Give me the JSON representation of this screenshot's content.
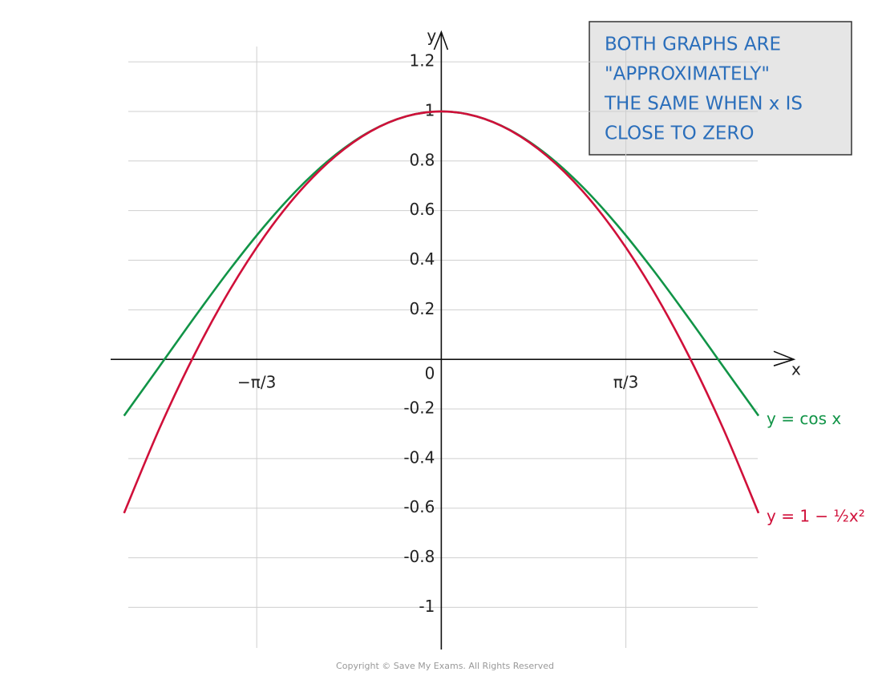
{
  "chart_data": {
    "type": "line",
    "annotation": [
      "BOTH GRAPHS ARE",
      "\"APPROXIMATELY\"",
      "THE SAME WHEN x IS",
      "CLOSE TO ZERO"
    ],
    "xlabel": "x",
    "ylabel": "y",
    "x": [
      -1.8,
      -1.6,
      -1.4,
      -1.2,
      -1.0,
      -0.8,
      -0.6,
      -0.4,
      -0.2,
      0,
      0.2,
      0.4,
      0.6,
      0.8,
      1.0,
      1.2,
      1.4,
      1.6,
      1.8
    ],
    "series": [
      {
        "name": "y = cos x",
        "color": "#119447",
        "values": [
          -0.2272,
          -0.0292,
          0.17,
          0.3624,
          0.5403,
          0.6967,
          0.8253,
          0.9211,
          0.9801,
          1,
          0.9801,
          0.9211,
          0.8253,
          0.6967,
          0.5403,
          0.3624,
          0.17,
          -0.0292,
          -0.2272
        ]
      },
      {
        "name": "y = 1 − ½x²",
        "color": "#d0103a",
        "values": [
          -0.62,
          -0.28,
          0.02,
          0.28,
          0.5,
          0.68,
          0.82,
          0.92,
          0.98,
          1,
          0.98,
          0.92,
          0.82,
          0.68,
          0.5,
          0.28,
          0.02,
          -0.28,
          -0.62
        ]
      }
    ],
    "xlim": [
      -1.876,
      2.0
    ],
    "ylim": [
      -1.17,
      1.32
    ],
    "xticks": [
      {
        "value": -1.0472,
        "label": "−π/3"
      },
      {
        "value": 1.0472,
        "label": "π/3"
      }
    ],
    "yticks": [
      -1,
      -0.8,
      -0.6,
      -0.4,
      -0.2,
      0,
      0.2,
      0.4,
      0.6,
      0.8,
      1,
      1.2
    ],
    "grid": true,
    "footer": "Copyright © Save My Exams. All Rights Reserved"
  }
}
